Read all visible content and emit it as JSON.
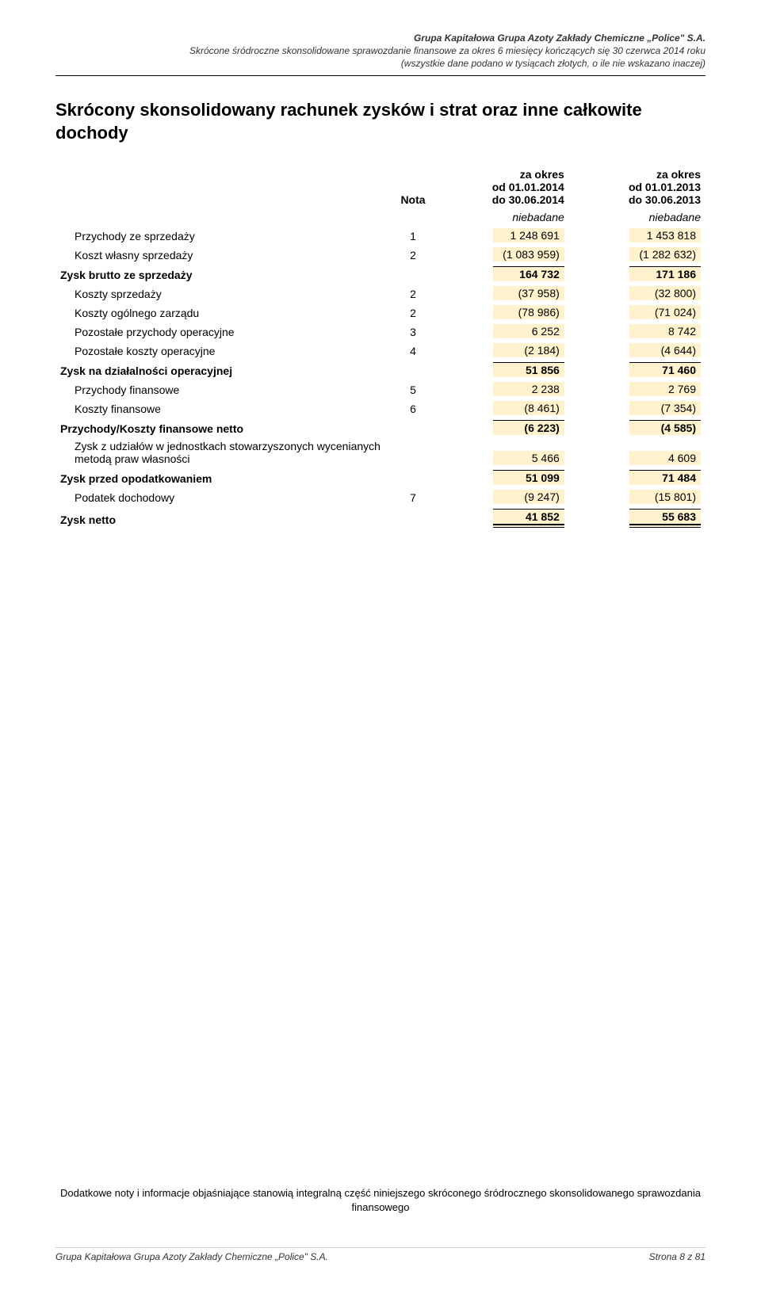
{
  "header": {
    "line1": "Grupa Kapitałowa Grupa Azoty Zakłady Chemiczne „Police\" S.A.",
    "line2": "Skrócone śródroczne skonsolidowane sprawozdanie finansowe za okres 6 miesięcy kończących się 30 czerwca 2014 roku",
    "line3": "(wszystkie dane podano w tysiącach złotych, o ile nie wskazano inaczej)"
  },
  "title": "Skrócony skonsolidowany rachunek zysków i strat oraz inne całkowite dochody",
  "columns": {
    "nota_label": "Nota",
    "period1_line1": "za okres",
    "period1_line2": "od 01.01.2014",
    "period1_line3": "do 30.06.2014",
    "period2_line1": "za okres",
    "period2_line2": "od 01.01.2013",
    "period2_line3": "do 30.06.2013",
    "niebadane": "niebadane"
  },
  "rows": [
    {
      "label": "Przychody ze sprzedaży",
      "nota": "1",
      "v1": "1 248 691",
      "v2": "1 453 818",
      "bold": false,
      "indent": true
    },
    {
      "label": "Koszt własny sprzedaży",
      "nota": "2",
      "v1": "(1 083 959)",
      "v2": "(1 282 632)",
      "bold": false,
      "indent": true
    },
    {
      "label": "Zysk brutto ze sprzedaży",
      "nota": "",
      "v1": "164 732",
      "v2": "171 186",
      "bold": true,
      "sum": "top"
    },
    {
      "label": "Koszty sprzedaży",
      "nota": "2",
      "v1": "(37 958)",
      "v2": "(32 800)",
      "bold": false,
      "indent": true
    },
    {
      "label": "Koszty ogólnego zarządu",
      "nota": "2",
      "v1": "(78 986)",
      "v2": "(71 024)",
      "bold": false,
      "indent": true
    },
    {
      "label": "Pozostałe przychody operacyjne",
      "nota": "3",
      "v1": "6 252",
      "v2": "8 742",
      "bold": false,
      "indent": true
    },
    {
      "label": "Pozostałe koszty operacyjne",
      "nota": "4",
      "v1": "(2 184)",
      "v2": "(4 644)",
      "bold": false,
      "indent": true
    },
    {
      "label": "Zysk na działalności operacyjnej",
      "nota": "",
      "v1": "51 856",
      "v2": "71 460",
      "bold": true,
      "sum": "top"
    },
    {
      "label": "Przychody finansowe",
      "nota": "5",
      "v1": "2 238",
      "v2": "2 769",
      "bold": false,
      "indent": true
    },
    {
      "label": "Koszty finansowe",
      "nota": "6",
      "v1": "(8 461)",
      "v2": "(7 354)",
      "bold": false,
      "indent": true
    },
    {
      "label": "Przychody/Koszty finansowe netto",
      "nota": "",
      "v1": "(6 223)",
      "v2": "(4 585)",
      "bold": true,
      "sum": "top"
    },
    {
      "label": "Zysk z udziałów w jednostkach stowarzyszonych wycenianych metodą praw własności",
      "nota": "",
      "v1": "5 466",
      "v2": "4 609",
      "bold": false,
      "indent": true
    },
    {
      "label": "Zysk przed opodatkowaniem",
      "nota": "",
      "v1": "51 099",
      "v2": "71 484",
      "bold": true,
      "sum": "top"
    },
    {
      "label": "Podatek dochodowy",
      "nota": "7",
      "v1": "(9 247)",
      "v2": "(15 801)",
      "bold": false,
      "indent": true
    },
    {
      "label": "Zysk netto",
      "nota": "",
      "v1": "41 852",
      "v2": "55 683",
      "bold": true,
      "sum": "dbl"
    }
  ],
  "footer_note": "Dodatkowe noty i informacje objaśniające stanowią integralną część niniejszego skróconego śródrocznego skonsolidowanego sprawozdania finansowego",
  "page_footer": {
    "left": "Grupa Kapitałowa Grupa Azoty Zakłady Chemiczne „Police\" S.A.",
    "right": "Strona 8 z 81"
  },
  "style": {
    "highlight_bg": "#fff2cc",
    "page_bg": "#ffffff",
    "text_color": "#000000"
  }
}
